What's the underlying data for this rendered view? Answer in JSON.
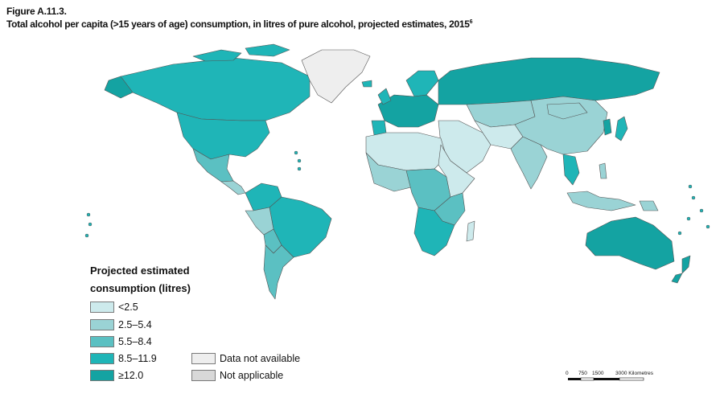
{
  "figure": {
    "label": "Figure A.11.3.",
    "title": "Total alcohol per capita (>15 years of age) consumption, in litres of pure alcohol, projected estimates, 2015",
    "footnote_marker": "6"
  },
  "legend": {
    "title_line1": "Projected estimated",
    "title_line2": "consumption (litres)",
    "classes": [
      {
        "label": "<2.5",
        "color": "#cdeaec"
      },
      {
        "label": "2.5–5.4",
        "color": "#9ad3d5"
      },
      {
        "label": "5.5–8.4",
        "color": "#5bc0c2"
      },
      {
        "label": "8.5–11.9",
        "color": "#1fb5b7"
      },
      {
        "label": "≥12.0",
        "color": "#14a3a2"
      }
    ],
    "other": [
      {
        "label": "Data not available",
        "color": "#eeeeee"
      },
      {
        "label": "Not applicable",
        "color": "#d8d8d8"
      }
    ]
  },
  "scale": {
    "ticks": [
      "0",
      "750",
      "1500",
      "3000 Kilometres"
    ]
  },
  "colors": {
    "border": "#555555",
    "background": "#ffffff"
  }
}
